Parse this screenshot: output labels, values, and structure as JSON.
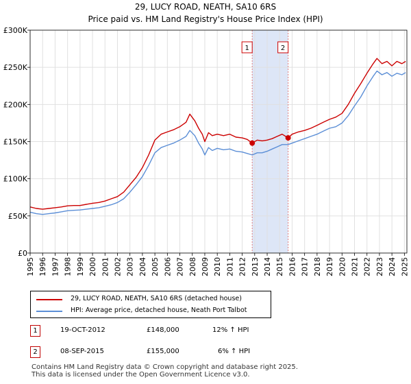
{
  "title": "29, LUCY ROAD, NEATH, SA10 6RS",
  "subtitle": "Price paid vs. HM Land Registry's House Price Index (HPI)",
  "colors": {
    "property": "#cc0000",
    "hpi": "#5b8ed6",
    "highlight": "#dde6f7",
    "marker_line": "#e08080",
    "grid": "#e0e0e0"
  },
  "chart_data": {
    "type": "line",
    "title": "29, LUCY ROAD, NEATH, SA10 6RS",
    "subtitle": "Price paid vs. HM Land Registry's House Price Index (HPI)",
    "xlim": [
      1995.0,
      2025.2
    ],
    "ylim": [
      0,
      300000
    ],
    "y_ticks": [
      0,
      50000,
      100000,
      150000,
      200000,
      250000,
      300000
    ],
    "y_tick_labels": [
      "£0",
      "£50K",
      "£100K",
      "£150K",
      "£200K",
      "£250K",
      "£300K"
    ],
    "x_ticks": [
      1995,
      1996,
      1997,
      1998,
      1999,
      2000,
      2001,
      2002,
      2003,
      2004,
      2005,
      2006,
      2007,
      2008,
      2009,
      2010,
      2011,
      2012,
      2013,
      2014,
      2015,
      2016,
      2017,
      2018,
      2019,
      2020,
      2021,
      2022,
      2023,
      2024,
      2025
    ],
    "x_tick_labels": [
      "1995",
      "1996",
      "1997",
      "1998",
      "1999",
      "2000",
      "2001",
      "2002",
      "2003",
      "2004",
      "2005",
      "2006",
      "2007",
      "2008",
      "2009",
      "2010",
      "2011",
      "2012",
      "2013",
      "2014",
      "2015",
      "2016",
      "2017",
      "2018",
      "2019",
      "2020",
      "2021",
      "2022",
      "2023",
      "2024",
      "2025"
    ],
    "highlight_span": [
      2012.8,
      2015.68
    ],
    "series": [
      {
        "name": "29, LUCY ROAD, NEATH, SA10 6RS (detached house)",
        "color": "#cc0000",
        "points": [
          [
            1995.0,
            62000
          ],
          [
            1995.5,
            60000
          ],
          [
            1996.0,
            59000
          ],
          [
            1996.5,
            60000
          ],
          [
            1997.0,
            61000
          ],
          [
            1997.5,
            62000
          ],
          [
            1998.0,
            63500
          ],
          [
            1998.5,
            64000
          ],
          [
            1999.0,
            64000
          ],
          [
            1999.5,
            65500
          ],
          [
            2000.0,
            67000
          ],
          [
            2000.5,
            68000
          ],
          [
            2001.0,
            70000
          ],
          [
            2001.5,
            73000
          ],
          [
            2002.0,
            76000
          ],
          [
            2002.5,
            82000
          ],
          [
            2003.0,
            92000
          ],
          [
            2003.5,
            102000
          ],
          [
            2004.0,
            115000
          ],
          [
            2004.5,
            132000
          ],
          [
            2005.0,
            152000
          ],
          [
            2005.5,
            160000
          ],
          [
            2006.0,
            163000
          ],
          [
            2006.5,
            166000
          ],
          [
            2007.0,
            170000
          ],
          [
            2007.5,
            176000
          ],
          [
            2007.8,
            187000
          ],
          [
            2008.2,
            178000
          ],
          [
            2008.5,
            168000
          ],
          [
            2008.8,
            160000
          ],
          [
            2009.0,
            150000
          ],
          [
            2009.3,
            162000
          ],
          [
            2009.6,
            158000
          ],
          [
            2010.0,
            160000
          ],
          [
            2010.5,
            158000
          ],
          [
            2011.0,
            160000
          ],
          [
            2011.5,
            156000
          ],
          [
            2012.0,
            155000
          ],
          [
            2012.4,
            153000
          ],
          [
            2012.8,
            148000
          ],
          [
            2013.2,
            152000
          ],
          [
            2013.6,
            151000
          ],
          [
            2014.0,
            152000
          ],
          [
            2014.4,
            154000
          ],
          [
            2014.8,
            157000
          ],
          [
            2015.2,
            160000
          ],
          [
            2015.68,
            155000
          ],
          [
            2016.0,
            160000
          ],
          [
            2016.5,
            163000
          ],
          [
            2017.0,
            165000
          ],
          [
            2017.5,
            168000
          ],
          [
            2018.0,
            172000
          ],
          [
            2018.5,
            176000
          ],
          [
            2019.0,
            180000
          ],
          [
            2019.5,
            183000
          ],
          [
            2020.0,
            188000
          ],
          [
            2020.5,
            200000
          ],
          [
            2021.0,
            215000
          ],
          [
            2021.5,
            228000
          ],
          [
            2022.0,
            242000
          ],
          [
            2022.5,
            255000
          ],
          [
            2022.8,
            262000
          ],
          [
            2023.2,
            255000
          ],
          [
            2023.6,
            258000
          ],
          [
            2024.0,
            252000
          ],
          [
            2024.4,
            258000
          ],
          [
            2024.8,
            255000
          ],
          [
            2025.1,
            258000
          ]
        ]
      },
      {
        "name": "HPI: Average price, detached house, Neath Port Talbot",
        "color": "#5b8ed6",
        "points": [
          [
            1995.0,
            55000
          ],
          [
            1995.5,
            53000
          ],
          [
            1996.0,
            52000
          ],
          [
            1996.5,
            53000
          ],
          [
            1997.0,
            54000
          ],
          [
            1997.5,
            55500
          ],
          [
            1998.0,
            57000
          ],
          [
            1998.5,
            57500
          ],
          [
            1999.0,
            58000
          ],
          [
            1999.5,
            59000
          ],
          [
            2000.0,
            60000
          ],
          [
            2000.5,
            61000
          ],
          [
            2001.0,
            63000
          ],
          [
            2001.5,
            65000
          ],
          [
            2002.0,
            68000
          ],
          [
            2002.5,
            73000
          ],
          [
            2003.0,
            82000
          ],
          [
            2003.5,
            92000
          ],
          [
            2004.0,
            103000
          ],
          [
            2004.5,
            118000
          ],
          [
            2005.0,
            135000
          ],
          [
            2005.5,
            142000
          ],
          [
            2006.0,
            145000
          ],
          [
            2006.5,
            148000
          ],
          [
            2007.0,
            152000
          ],
          [
            2007.5,
            157000
          ],
          [
            2007.8,
            165000
          ],
          [
            2008.2,
            158000
          ],
          [
            2008.5,
            148000
          ],
          [
            2008.8,
            140000
          ],
          [
            2009.0,
            132000
          ],
          [
            2009.3,
            142000
          ],
          [
            2009.6,
            138000
          ],
          [
            2010.0,
            141000
          ],
          [
            2010.5,
            139000
          ],
          [
            2011.0,
            140000
          ],
          [
            2011.5,
            137000
          ],
          [
            2012.0,
            136000
          ],
          [
            2012.4,
            134000
          ],
          [
            2012.8,
            132000
          ],
          [
            2013.2,
            135000
          ],
          [
            2013.6,
            135000
          ],
          [
            2014.0,
            137000
          ],
          [
            2014.4,
            140000
          ],
          [
            2014.8,
            143000
          ],
          [
            2015.2,
            146000
          ],
          [
            2015.68,
            146000
          ],
          [
            2016.0,
            148000
          ],
          [
            2016.5,
            151000
          ],
          [
            2017.0,
            154000
          ],
          [
            2017.5,
            157000
          ],
          [
            2018.0,
            160000
          ],
          [
            2018.5,
            164000
          ],
          [
            2019.0,
            168000
          ],
          [
            2019.5,
            170000
          ],
          [
            2020.0,
            175000
          ],
          [
            2020.5,
            185000
          ],
          [
            2021.0,
            198000
          ],
          [
            2021.5,
            210000
          ],
          [
            2022.0,
            225000
          ],
          [
            2022.5,
            238000
          ],
          [
            2022.8,
            245000
          ],
          [
            2023.2,
            240000
          ],
          [
            2023.6,
            243000
          ],
          [
            2024.0,
            238000
          ],
          [
            2024.4,
            242000
          ],
          [
            2024.8,
            240000
          ],
          [
            2025.1,
            243000
          ]
        ]
      }
    ],
    "sales": [
      {
        "label": "1",
        "x": 2012.8,
        "y": 148000
      },
      {
        "label": "2",
        "x": 2015.68,
        "y": 155000
      }
    ]
  },
  "legend": {
    "property_label": "29, LUCY ROAD, NEATH, SA10 6RS (detached house)",
    "hpi_label": "HPI: Average price, detached house, Neath Port Talbot"
  },
  "transactions": [
    {
      "num": "1",
      "date": "19-OCT-2012",
      "price": "£148,000",
      "hpi": "12% ↑ HPI"
    },
    {
      "num": "2",
      "date": "08-SEP-2015",
      "price": "£155,000",
      "hpi": "6% ↑ HPI"
    }
  ],
  "footer": {
    "line1": "Contains HM Land Registry data © Crown copyright and database right 2025.",
    "line2": "This data is licensed under the Open Government Licence v3.0."
  }
}
